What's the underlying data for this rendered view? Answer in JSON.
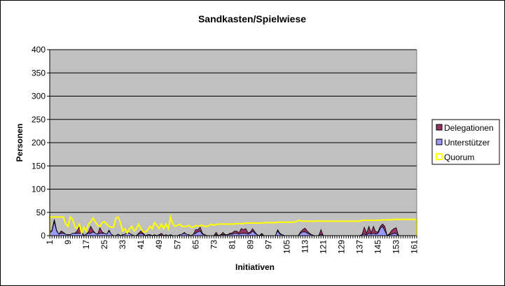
{
  "chart_data": {
    "type": "area",
    "title": "Sandkasten/Spielwiese",
    "xlabel": "Initiativen",
    "ylabel": "Personen",
    "ylim": [
      0,
      400
    ],
    "yticks": [
      "0",
      "50",
      "100",
      "150",
      "200",
      "250",
      "300",
      "350",
      "400"
    ],
    "x_count": 162,
    "xtick_labels": [
      "1",
      "9",
      "17",
      "25",
      "33",
      "41",
      "49",
      "57",
      "65",
      "73",
      "81",
      "89",
      "97",
      "105",
      "113",
      "121",
      "129",
      "137",
      "145",
      "153",
      "161"
    ],
    "grid": true,
    "legend_position": "right",
    "legend": [
      "Delegationen",
      "Unterstützer",
      "Quorum"
    ],
    "colors": {
      "Delegationen": "#993366",
      "Unterstützer": "#9999ff",
      "Quorum": "#ffff00",
      "plot_bg": "#c0c0c0"
    },
    "series": [
      {
        "name": "Unterstützer",
        "stacked": true,
        "values": [
          5,
          10,
          30,
          10,
          3,
          5,
          5,
          3,
          2,
          2,
          5,
          5,
          5,
          5,
          5,
          0,
          3,
          5,
          5,
          8,
          5,
          3,
          5,
          5,
          5,
          3,
          10,
          3,
          0,
          0,
          3,
          0,
          2,
          3,
          5,
          5,
          2,
          0,
          0,
          3,
          5,
          3,
          0,
          2,
          2,
          0,
          2,
          0,
          2,
          0,
          0,
          2,
          0,
          2,
          0,
          0,
          0,
          2,
          3,
          5,
          3,
          2,
          0,
          3,
          5,
          8,
          10,
          3,
          2,
          0,
          0,
          0,
          0,
          2,
          0,
          2,
          2,
          2,
          2,
          3,
          3,
          5,
          5,
          3,
          5,
          5,
          5,
          3,
          5,
          10,
          5,
          2,
          0,
          2,
          0,
          0,
          0,
          0,
          0,
          0,
          10,
          3,
          2,
          0,
          0,
          0,
          0,
          0,
          0,
          0,
          5,
          8,
          8,
          5,
          3,
          2,
          0,
          0,
          0,
          3,
          0,
          0,
          0,
          0,
          0,
          0,
          0,
          0,
          0,
          0,
          0,
          0,
          0,
          0,
          0,
          0,
          0,
          2,
          3,
          2,
          5,
          3,
          5,
          3,
          5,
          15,
          20,
          10,
          0,
          2,
          3,
          5,
          5,
          0,
          0,
          0,
          0,
          0,
          0,
          0,
          0,
          0
        ]
      },
      {
        "name": "Delegationen",
        "stacked": true,
        "values": [
          3,
          2,
          5,
          2,
          0,
          5,
          2,
          0,
          0,
          0,
          0,
          0,
          5,
          15,
          5,
          0,
          0,
          3,
          15,
          3,
          0,
          0,
          12,
          3,
          0,
          0,
          2,
          0,
          0,
          0,
          0,
          0,
          0,
          0,
          2,
          0,
          0,
          0,
          0,
          2,
          5,
          2,
          0,
          0,
          0,
          0,
          0,
          0,
          0,
          5,
          0,
          0,
          0,
          0,
          0,
          0,
          0,
          0,
          0,
          2,
          0,
          0,
          0,
          0,
          8,
          5,
          8,
          2,
          0,
          0,
          0,
          0,
          0,
          5,
          0,
          0,
          5,
          0,
          0,
          2,
          3,
          5,
          5,
          3,
          10,
          8,
          10,
          3,
          3,
          5,
          3,
          0,
          0,
          3,
          0,
          0,
          0,
          0,
          0,
          0,
          3,
          2,
          0,
          0,
          0,
          0,
          0,
          0,
          0,
          0,
          3,
          5,
          8,
          5,
          2,
          0,
          0,
          0,
          0,
          10,
          0,
          0,
          0,
          0,
          0,
          0,
          0,
          0,
          0,
          0,
          0,
          0,
          0,
          0,
          0,
          0,
          0,
          0,
          15,
          3,
          15,
          3,
          15,
          5,
          3,
          5,
          5,
          10,
          0,
          2,
          8,
          10,
          12,
          0,
          0,
          0,
          0,
          0,
          0,
          0,
          0,
          0
        ]
      },
      {
        "name": "Quorum",
        "stacked": false,
        "values": [
          40,
          40,
          40,
          40,
          40,
          40,
          40,
          25,
          20,
          40,
          35,
          20,
          15,
          25,
          5,
          18,
          10,
          25,
          30,
          38,
          30,
          22,
          20,
          28,
          30,
          25,
          20,
          18,
          18,
          38,
          40,
          28,
          10,
          15,
          5,
          15,
          20,
          10,
          15,
          25,
          15,
          8,
          8,
          12,
          20,
          15,
          28,
          22,
          15,
          25,
          15,
          25,
          15,
          40,
          25,
          20,
          22,
          25,
          20,
          20,
          20,
          22,
          18,
          18,
          22,
          20,
          22,
          22,
          20,
          20,
          22,
          25,
          22,
          24,
          25,
          25,
          25,
          25,
          25,
          25,
          25,
          25,
          26,
          26,
          26,
          26,
          27,
          27,
          27,
          27,
          27,
          27,
          27,
          27,
          28,
          28,
          28,
          28,
          28,
          28,
          29,
          29,
          29,
          29,
          29,
          29,
          29,
          29,
          30,
          33,
          32,
          31,
          31,
          31,
          31,
          31,
          31,
          31,
          32,
          31,
          31,
          31,
          31,
          31,
          31,
          31,
          31,
          31,
          31,
          31,
          31,
          31,
          31,
          31,
          31,
          31,
          31,
          33,
          33,
          33,
          33,
          33,
          33,
          33,
          33,
          33,
          34,
          34,
          34,
          34,
          34,
          35,
          35,
          35,
          35,
          35,
          35,
          35,
          35,
          35,
          35,
          35
        ]
      }
    ]
  }
}
